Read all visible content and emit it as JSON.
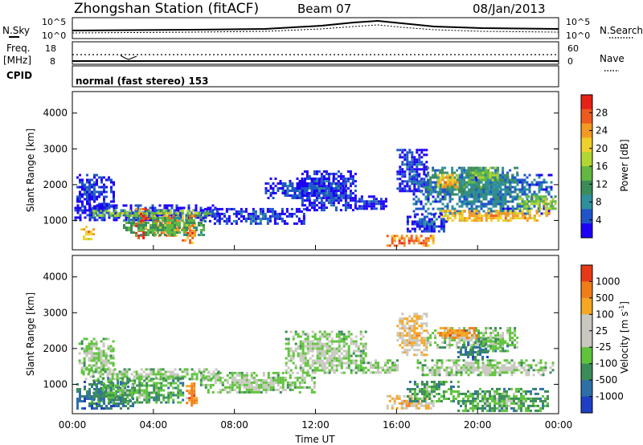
{
  "header": {
    "title": "Zhongshan Station (fitACF)",
    "beam": "Beam 07",
    "date": "08/Jan/2013"
  },
  "strips": {
    "nsky_label": "N.Sky",
    "nsky_ticks": [
      "10^5",
      "10^0"
    ],
    "nsearch_label": "N.Search",
    "freq_label": "Freq.",
    "freq_unit": "[MHz]",
    "freq_ticks": [
      "18",
      "8"
    ],
    "nave_ticks": [
      "60",
      "0"
    ],
    "nave_label": "Nave",
    "cpid_label": "CPID",
    "cpid_text": "normal (fast stereo) 153"
  },
  "chart_data": [
    {
      "type": "heatmap",
      "name": "power",
      "ylabel": "Slant Range [km]",
      "yticks": [
        "4000",
        "3000",
        "2000",
        "1000"
      ],
      "ylim": [
        180,
        4600
      ],
      "xlim": [
        0,
        24
      ],
      "colorbar": {
        "label": "Power [dB]",
        "ticks": [
          "28",
          "24",
          "20",
          "16",
          "12",
          "8",
          "4"
        ],
        "colors": [
          "#1d00f5",
          "#1f55c9",
          "#2f8f9c",
          "#3c8c58",
          "#63b842",
          "#b1d634",
          "#f0d02a",
          "#f39a24",
          "#ef5a1f",
          "#e62117"
        ]
      },
      "regions": [
        {
          "t0": 0.2,
          "t1": 2.0,
          "r0": 1350,
          "r1": 2300,
          "level": 1
        },
        {
          "t0": 0.1,
          "t1": 7.2,
          "r0": 1000,
          "r1": 1450,
          "level": 1
        },
        {
          "t0": 1.0,
          "t1": 7.0,
          "r0": 1150,
          "r1": 1300,
          "level": 5
        },
        {
          "t0": 3.1,
          "t1": 3.7,
          "r0": 500,
          "r1": 1350,
          "level": 9
        },
        {
          "t0": 4.0,
          "t1": 5.2,
          "r0": 550,
          "r1": 1150,
          "level": 8
        },
        {
          "t0": 5.4,
          "t1": 6.1,
          "r0": 400,
          "r1": 1150,
          "level": 8
        },
        {
          "t0": 0.4,
          "t1": 1.0,
          "r0": 450,
          "r1": 850,
          "level": 7
        },
        {
          "t0": 2.5,
          "t1": 6.5,
          "r0": 600,
          "r1": 1100,
          "level": 4
        },
        {
          "t0": 6.5,
          "t1": 11.5,
          "r0": 900,
          "r1": 1350,
          "level": 1
        },
        {
          "t0": 9.5,
          "t1": 13.5,
          "r0": 1600,
          "r1": 2200,
          "level": 1
        },
        {
          "t0": 11.3,
          "t1": 14.0,
          "r0": 1300,
          "r1": 2400,
          "level": 1
        },
        {
          "t0": 14.0,
          "t1": 15.5,
          "r0": 1300,
          "r1": 1700,
          "level": 1
        },
        {
          "t0": 15.5,
          "t1": 17.8,
          "r0": 300,
          "r1": 600,
          "level": 8
        },
        {
          "t0": 16.0,
          "t1": 17.5,
          "r0": 1800,
          "r1": 3000,
          "level": 1
        },
        {
          "t0": 16.8,
          "t1": 23.7,
          "r0": 1200,
          "r1": 2300,
          "level": 2
        },
        {
          "t0": 17.5,
          "t1": 22.0,
          "r0": 1700,
          "r1": 2500,
          "level": 3
        },
        {
          "t0": 18.0,
          "t1": 19.0,
          "r0": 1900,
          "r1": 2300,
          "level": 7
        },
        {
          "t0": 19.5,
          "t1": 21.0,
          "r0": 2100,
          "r1": 2500,
          "level": 5
        },
        {
          "t0": 22.0,
          "t1": 23.9,
          "r0": 1300,
          "r1": 1700,
          "level": 5
        },
        {
          "t0": 18.0,
          "t1": 23.5,
          "r0": 1000,
          "r1": 1300,
          "level": 7
        },
        {
          "t0": 16.5,
          "t1": 18.5,
          "r0": 700,
          "r1": 1200,
          "level": 1
        }
      ]
    },
    {
      "type": "heatmap",
      "name": "velocity",
      "ylabel": "Slant Range [km]",
      "yticks": [
        "4000",
        "3000",
        "2000",
        "1000"
      ],
      "ylim": [
        180,
        4600
      ],
      "xlim": [
        0,
        24
      ],
      "xlabel": "Time UT",
      "xticks": [
        "00:00",
        "04:00",
        "08:00",
        "12:00",
        "16:00",
        "20:00",
        "00:00"
      ],
      "colorbar": {
        "label": "Velocity [m s^-1]",
        "ticks": [
          "1000",
          "500",
          "100",
          "25",
          "-25",
          "-100",
          "-500",
          "-1000"
        ],
        "colors": [
          "#1e3fc4",
          "#2f6fa8",
          "#3c8c58",
          "#5fc43c",
          "#c8c8c0",
          "#c8c8c0",
          "#f5a623",
          "#f07d1a",
          "#e63a17"
        ]
      },
      "regions": [
        {
          "t0": 0.3,
          "t1": 2.0,
          "r0": 1350,
          "r1": 2300,
          "level": 4
        },
        {
          "t0": 0.5,
          "t1": 7.2,
          "r0": 1150,
          "r1": 1450,
          "level": 4
        },
        {
          "t0": 0.2,
          "t1": 3.0,
          "r0": 350,
          "r1": 1100,
          "level": 2
        },
        {
          "t0": 1.0,
          "t1": 5.5,
          "r0": 500,
          "r1": 1200,
          "level": 3
        },
        {
          "t0": 5.6,
          "t1": 6.1,
          "r0": 400,
          "r1": 1050,
          "level": 7
        },
        {
          "t0": 6.3,
          "t1": 12.0,
          "r0": 800,
          "r1": 1350,
          "level": 4
        },
        {
          "t0": 10.5,
          "t1": 14.5,
          "r0": 1300,
          "r1": 2500,
          "level": 4
        },
        {
          "t0": 14.2,
          "t1": 16.0,
          "r0": 1300,
          "r1": 1700,
          "level": 4
        },
        {
          "t0": 15.5,
          "t1": 17.8,
          "r0": 300,
          "r1": 700,
          "level": 6
        },
        {
          "t0": 16.0,
          "t1": 17.5,
          "r0": 1800,
          "r1": 3000,
          "level": 6
        },
        {
          "t0": 17.0,
          "t1": 23.7,
          "r0": 1250,
          "r1": 1700,
          "level": 4
        },
        {
          "t0": 17.5,
          "t1": 22.0,
          "r0": 2000,
          "r1": 2600,
          "level": 4
        },
        {
          "t0": 19.0,
          "t1": 20.5,
          "r0": 1700,
          "r1": 2200,
          "level": 2
        },
        {
          "t0": 20.0,
          "t1": 21.5,
          "r0": 1900,
          "r1": 2300,
          "level": 3
        },
        {
          "t0": 18.0,
          "t1": 20.0,
          "r0": 2300,
          "r1": 2600,
          "level": 7
        },
        {
          "t0": 16.5,
          "t1": 19.0,
          "r0": 500,
          "r1": 1100,
          "level": 3
        },
        {
          "t0": 19.0,
          "t1": 23.5,
          "r0": 250,
          "r1": 900,
          "level": 3
        }
      ]
    }
  ]
}
